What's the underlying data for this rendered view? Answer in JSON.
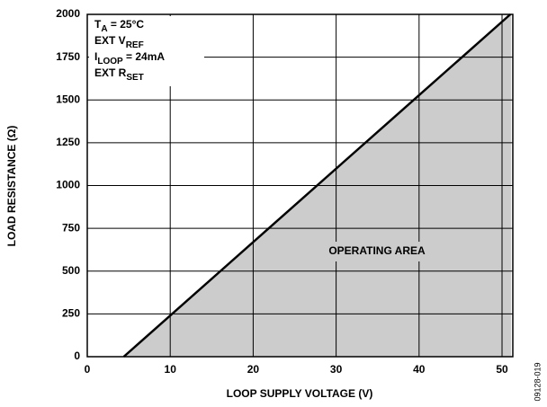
{
  "chart_data": {
    "type": "line",
    "xlabel": "LOOP SUPPLY VOLTAGE (V)",
    "ylabel": "LOAD RESISTANCE (Ω)",
    "series": [
      {
        "x": [
          4.4,
          51
        ],
        "values": [
          0,
          2000
        ],
        "color": "#000000",
        "fill": "#cccccc"
      }
    ],
    "xlim": [
      0,
      51.3
    ],
    "xticks": [
      0,
      10,
      20,
      30,
      40,
      50
    ],
    "ylim": [
      0,
      2000
    ],
    "yticks": [
      0,
      250,
      500,
      750,
      1000,
      1250,
      1500,
      1750,
      2000
    ],
    "grid": true,
    "annotation_lines": [
      [
        "T",
        "A",
        " = 25°C"
      ],
      [
        "EXT V",
        "REF"
      ],
      [
        "I",
        "LOOP",
        " = 24mA"
      ],
      [
        "EXT R",
        "SET"
      ]
    ],
    "area_label": "OPERATING AREA",
    "figure_id": "09128-019"
  }
}
